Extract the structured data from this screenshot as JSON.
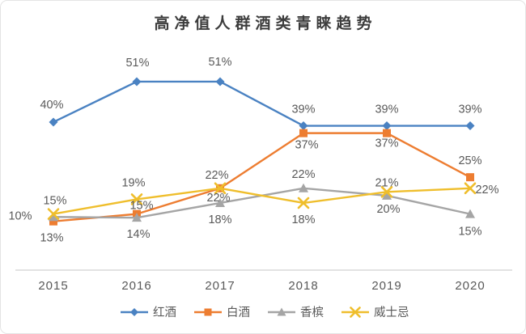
{
  "chart_data": {
    "type": "line",
    "title": "高净值人群酒类青睐趋势",
    "categories": [
      "2015",
      "2016",
      "2017",
      "2018",
      "2019",
      "2020"
    ],
    "series": [
      {
        "name": "红酒",
        "marker": "diamond",
        "color": "#4A82C2",
        "values": [
          40,
          51,
          51,
          39,
          39,
          39
        ]
      },
      {
        "name": "白酒",
        "marker": "square",
        "color": "#ED7D31",
        "values": [
          13,
          15,
          22,
          37,
          37,
          25
        ]
      },
      {
        "name": "香槟",
        "marker": "triangle",
        "color": "#A5A5A5",
        "values": [
          10,
          14,
          18,
          22,
          20,
          15
        ]
      },
      {
        "name": "威士忌",
        "marker": "x",
        "color": "#EFBE2C",
        "values": [
          15,
          19,
          22,
          18,
          21,
          22
        ]
      }
    ],
    "value_suffix": "%",
    "ylim": [
      0,
      60
    ],
    "grid": false,
    "legend_position": "bottom",
    "label_color": "#595959",
    "axis_line_color": "#d9d9d9",
    "title_color": "#3c3c3c"
  }
}
